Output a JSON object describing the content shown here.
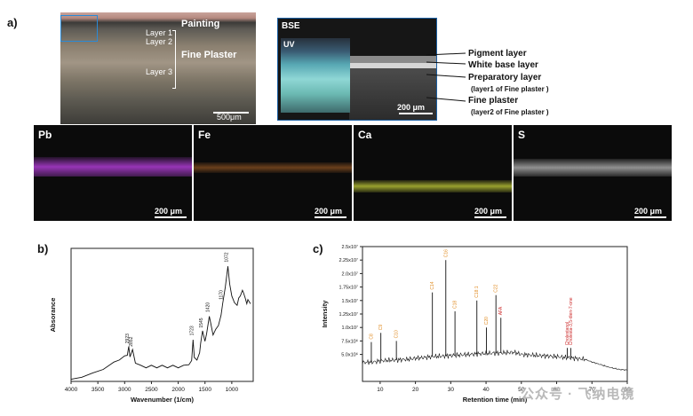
{
  "figure_a": {
    "label": "a)",
    "micrograph": {
      "painting": "Painting",
      "layer1": "Layer 1",
      "layer2": "Layer 2",
      "layer3": "Layer 3",
      "fine_plaster": "Fine Plaster",
      "scale": "500μm"
    },
    "bse": {
      "title": "BSE",
      "uv": "UV",
      "scale": "200 μm",
      "callouts": [
        {
          "text": "Pigment layer"
        },
        {
          "text": "White base layer"
        },
        {
          "text": "Preparatory layer"
        },
        {
          "text": "(layer1 of Fine plaster )"
        },
        {
          "text": "Fine plaster"
        },
        {
          "text": "(layer2 of Fine plaster )"
        }
      ]
    },
    "maps": [
      {
        "element": "Pb",
        "scale": "200 μm",
        "color": "#a63ac9"
      },
      {
        "element": "Fe",
        "scale": "200 μm",
        "color": "#b86a2a"
      },
      {
        "element": "Ca",
        "scale": "200 μm",
        "color": "#c9d43a"
      },
      {
        "element": "S",
        "scale": "200 μm",
        "color": "#d8d8d8"
      }
    ]
  },
  "figure_b": {
    "label": "b)"
  },
  "figure_c": {
    "label": "c)"
  },
  "watermark": "公众号 · 飞纳电镜",
  "chart_data": [
    {
      "type": "line",
      "xlabel": "Wavenumber (1/cm)",
      "ylabel": "Absorance",
      "xlim": [
        4000,
        600
      ],
      "xticks": [
        4000,
        3500,
        3000,
        2500,
        2000,
        1500,
        1000
      ],
      "x": [
        4000,
        3800,
        3600,
        3400,
        3200,
        3100,
        3000,
        2950,
        2923,
        2900,
        2852,
        2800,
        2700,
        2600,
        2500,
        2400,
        2300,
        2200,
        2100,
        2000,
        1900,
        1800,
        1750,
        1723,
        1700,
        1650,
        1600,
        1580,
        1545,
        1500,
        1470,
        1420,
        1400,
        1350,
        1300,
        1250,
        1200,
        1170,
        1120,
        1072,
        1040,
        1000,
        950,
        900,
        870,
        840,
        800,
        780,
        750,
        720,
        700,
        650
      ],
      "y": [
        0.01,
        0.03,
        0.05,
        0.08,
        0.12,
        0.14,
        0.16,
        0.17,
        0.22,
        0.16,
        0.2,
        0.12,
        0.1,
        0.09,
        0.1,
        0.09,
        0.1,
        0.09,
        0.1,
        0.09,
        0.1,
        0.11,
        0.13,
        0.27,
        0.15,
        0.14,
        0.18,
        0.25,
        0.32,
        0.26,
        0.3,
        0.42,
        0.38,
        0.3,
        0.33,
        0.36,
        0.42,
        0.5,
        0.6,
        0.74,
        0.62,
        0.55,
        0.5,
        0.49,
        0.53,
        0.55,
        0.58,
        0.57,
        0.53,
        0.5,
        0.52,
        0.5
      ],
      "peak_labels": [
        {
          "x": 2923,
          "label": "2923"
        },
        {
          "x": 2852,
          "label": "2852"
        },
        {
          "x": 1723,
          "label": "1723"
        },
        {
          "x": 1545,
          "label": "1545"
        },
        {
          "x": 1420,
          "label": "1420"
        },
        {
          "x": 1170,
          "label": "1170"
        },
        {
          "x": 1072,
          "label": "1072"
        }
      ]
    },
    {
      "type": "line",
      "xlabel": "Retention time (min)",
      "ylabel": "Intensity",
      "xlim": [
        5,
        80
      ],
      "ylim": [
        0,
        25000000
      ],
      "xticks": [
        10,
        20,
        30,
        40,
        50,
        60,
        70,
        80
      ],
      "yticks": [
        {
          "value": 5000000,
          "label": "5.0x10⁶"
        },
        {
          "value": 7500000,
          "label": "7.5x10⁶"
        },
        {
          "value": 10000000,
          "label": "1.0x10⁷"
        },
        {
          "value": 12500000,
          "label": "1.25x10⁷"
        },
        {
          "value": 15000000,
          "label": "1.5x10⁷"
        },
        {
          "value": 17500000,
          "label": "1.75x10⁷"
        },
        {
          "value": 20000000,
          "label": "2.0x10⁷"
        },
        {
          "value": 22500000,
          "label": "2.25x10⁷"
        },
        {
          "value": 25000000,
          "label": "2.5x10⁷"
        }
      ],
      "baseline": {
        "x": [
          5,
          8,
          10,
          12,
          15,
          18,
          20,
          22,
          25,
          28,
          30,
          35,
          40,
          45,
          48,
          50,
          55,
          60,
          65,
          68,
          70,
          73,
          75,
          78,
          80
        ],
        "y": [
          3500000,
          3600000,
          3800000,
          3900000,
          4000000,
          4100000,
          4300000,
          4400000,
          4600000,
          4700000,
          4800000,
          5000000,
          5200000,
          5300000,
          5400000,
          5000000,
          4800000,
          4600000,
          4300000,
          4100000,
          3600000,
          3000000,
          2600000,
          2200000,
          2100000
        ]
      },
      "peaks": [
        {
          "x": 7.5,
          "y": 7300000,
          "label": "C8",
          "color": "#e08a1f"
        },
        {
          "x": 10.2,
          "y": 9000000,
          "label": "C9",
          "color": "#e08a1f"
        },
        {
          "x": 14.6,
          "y": 7500000,
          "label": "C10",
          "color": "#e08a1f"
        },
        {
          "x": 24.8,
          "y": 16500000,
          "label": "C14",
          "color": "#e08a1f"
        },
        {
          "x": 28.6,
          "y": 22500000,
          "label": "C16",
          "color": "#e08a1f"
        },
        {
          "x": 31.2,
          "y": 13000000,
          "label": "C18",
          "color": "#e08a1f"
        },
        {
          "x": 37.4,
          "y": 15000000,
          "label": "C18:1",
          "color": "#e08a1f"
        },
        {
          "x": 40.1,
          "y": 10000000,
          "label": "C20",
          "color": "#e08a1f"
        },
        {
          "x": 42.8,
          "y": 16000000,
          "label": "C22",
          "color": "#e08a1f"
        },
        {
          "x": 44.2,
          "y": 11800000,
          "label": "AFA",
          "color": "#cc2a2a"
        },
        {
          "x": 63.0,
          "y": 6200000,
          "label": "Cholestanol",
          "color": "#cc2a2a"
        },
        {
          "x": 64.0,
          "y": 6200000,
          "label": "Cholesta-3,5-dien-7-one",
          "color": "#cc2a2a"
        }
      ]
    }
  ]
}
